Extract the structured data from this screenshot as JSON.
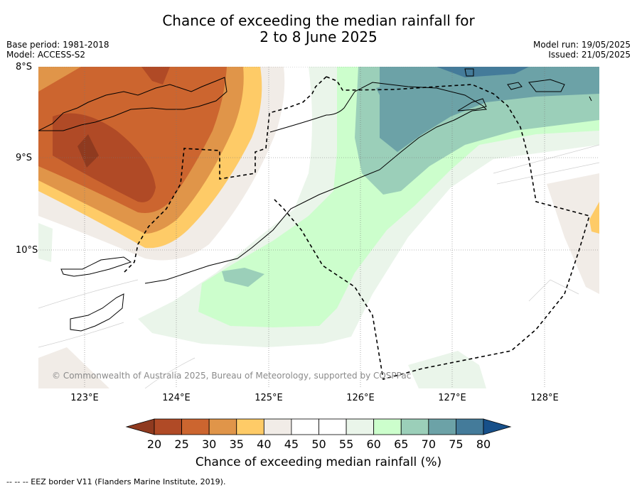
{
  "header": {
    "title_line1": "Chance of exceeding the median rainfall for",
    "title_line2": "2 to 8 June 2025",
    "base_period": "Base period: 1981-2018",
    "model": "Model: ACCESS-S2",
    "model_run": "Model run: 19/05/2025",
    "issued": "Issued: 21/05/2025"
  },
  "axes": {
    "lat_labels": [
      "8°S",
      "9°S",
      "10°S"
    ],
    "lon_labels": [
      "123°E",
      "124°E",
      "125°E",
      "126°E",
      "127°E",
      "128°E"
    ],
    "lon_range": [
      122.5,
      128.6
    ],
    "lat_range": [
      -8.0,
      -11.5
    ]
  },
  "map": {
    "copyright": "© Commonwealth of Australia 2025, Bureau of Meteorology, supported by COSPPac"
  },
  "colorbar": {
    "ticks": [
      "20",
      "25",
      "30",
      "35",
      "40",
      "45",
      "50",
      "55",
      "60",
      "65",
      "70",
      "75",
      "80"
    ],
    "colors": [
      "#b04a26",
      "#cc652f",
      "#e09549",
      "#fecb67",
      "#f1ece7",
      "#ffffff",
      "#ffffff",
      "#eaf5ea",
      "#ccfecc",
      "#9bcfb9",
      "#6ca2a7",
      "#447b9a"
    ],
    "under_color": "#8f3a1f",
    "over_color": "#17508a",
    "label": "Chance of exceeding median rainfall (%)"
  },
  "footnote": "--  --  -- EEZ border V11 (Flanders Marine Institute, 2019)."
}
